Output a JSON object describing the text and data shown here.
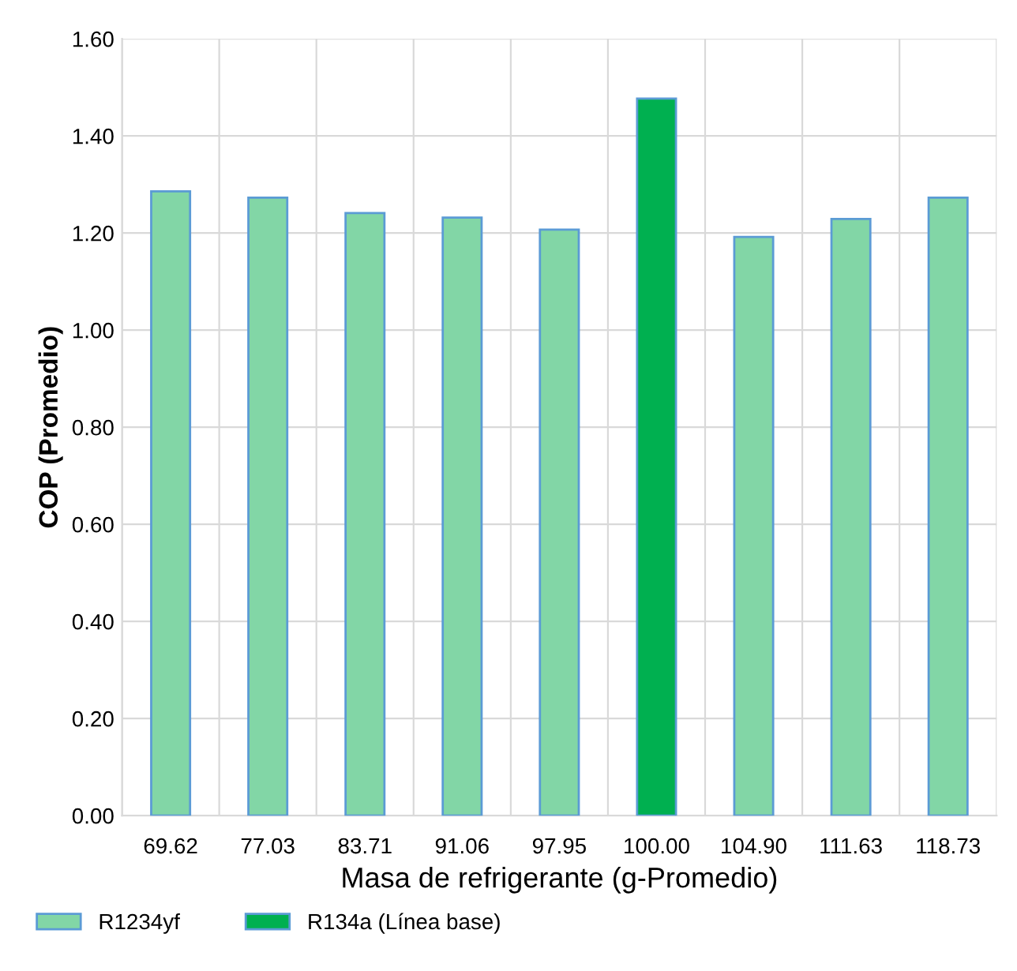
{
  "chart_data": {
    "type": "bar",
    "xlabel": "Masa de refrigerante (g-Promedio)",
    "ylabel": "COP (Promedio)",
    "categories": [
      "69.62",
      "77.03",
      "83.71",
      "91.06",
      "97.95",
      "100.00",
      "104.90",
      "111.63",
      "118.73"
    ],
    "series": [
      {
        "name": "R1234yf",
        "color": "#82d6a6",
        "values": [
          1.286,
          1.273,
          1.241,
          1.232,
          1.207,
          null,
          1.192,
          1.229,
          1.273
        ]
      },
      {
        "name": "R134a (Línea base)",
        "color": "#00b050",
        "values": [
          null,
          null,
          null,
          null,
          null,
          1.477,
          null,
          null,
          null
        ]
      }
    ],
    "ylim": [
      0,
      1.6
    ],
    "yticks": [
      {
        "value": 0,
        "label": "0.00"
      },
      {
        "value": 0.2,
        "label": "0.20"
      },
      {
        "value": 0.4,
        "label": "0.40"
      },
      {
        "value": 0.6,
        "label": "0.60"
      },
      {
        "value": 0.8,
        "label": "0.80"
      },
      {
        "value": 1.0,
        "label": "1.00"
      },
      {
        "value": 1.2,
        "label": "1.20"
      },
      {
        "value": 1.4,
        "label": "1.40"
      },
      {
        "value": 1.6,
        "label": "1.60"
      }
    ],
    "grid": true,
    "legend": "bottom left"
  }
}
